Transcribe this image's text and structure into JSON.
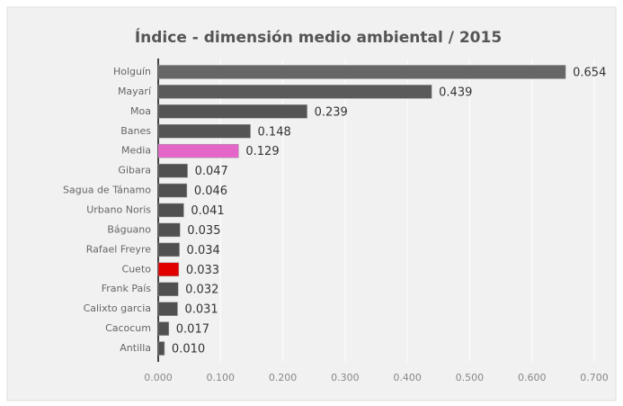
{
  "chart_data": {
    "type": "bar",
    "orientation": "horizontal",
    "title": "Índice - dimensión medio ambiental / 2015",
    "categories": [
      "Holguín",
      "Mayarí",
      "Moa",
      "Banes",
      "Media",
      "Gibara",
      "Sagua de Tánamo",
      "Urbano Noris",
      "Báguano",
      "Rafael Freyre",
      "Cueto",
      "Frank País",
      "Calixto garcia",
      "Cacocum",
      "Antilla"
    ],
    "values": [
      0.654,
      0.439,
      0.239,
      0.148,
      0.129,
      0.047,
      0.046,
      0.041,
      0.035,
      0.034,
      0.033,
      0.032,
      0.031,
      0.017,
      0.01
    ],
    "value_labels": [
      "0.654",
      "0.439",
      "0.239",
      "0.148",
      "0.129",
      "0.047",
      "0.046",
      "0.041",
      "0.035",
      "0.034",
      "0.033",
      "0.032",
      "0.031",
      "0.017",
      "0.010"
    ],
    "colors": [
      "#666666",
      "#5a5a5a",
      "#555555",
      "#555555",
      "#e466c8",
      "#505050",
      "#505050",
      "#505050",
      "#505050",
      "#505050",
      "#e00000",
      "#505050",
      "#505050",
      "#505050",
      "#505050"
    ],
    "xlim": [
      0,
      0.7
    ],
    "xticks": [
      {
        "value": 0,
        "label": "0.000"
      },
      {
        "value": 0.1,
        "label": "0.100"
      },
      {
        "value": 0.2,
        "label": "0.200"
      },
      {
        "value": 0.3,
        "label": "0.300"
      },
      {
        "value": 0.4,
        "label": "0.400"
      },
      {
        "value": 0.5,
        "label": "0.500"
      },
      {
        "value": 0.6,
        "label": "0.600"
      },
      {
        "value": 0.7,
        "label": "0.700"
      }
    ],
    "grid": true
  }
}
